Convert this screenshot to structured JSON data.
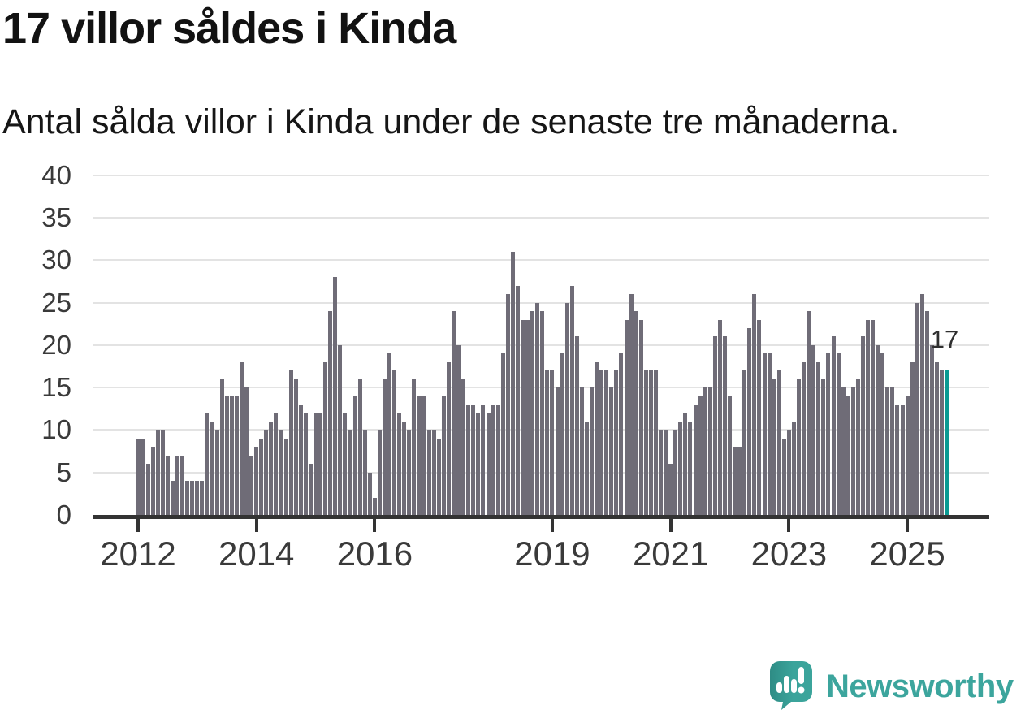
{
  "header": {
    "title": "17 villor såldes i Kinda",
    "subtitle": "Antal sålda villor i Kinda under de senaste tre månaderna."
  },
  "chart_data": {
    "type": "bar",
    "title": "17 villor såldes i Kinda",
    "subtitle": "Antal sålda villor i Kinda under de senaste tre månaderna.",
    "x_unit": "month",
    "x_start": "2012-01",
    "x_end": "2025-09",
    "values": [
      9,
      9,
      6,
      8,
      10,
      10,
      7,
      4,
      7,
      7,
      4,
      4,
      4,
      4,
      12,
      11,
      10,
      16,
      14,
      14,
      14,
      18,
      15,
      7,
      8,
      9,
      10,
      11,
      12,
      10,
      9,
      17,
      16,
      13,
      12,
      6,
      12,
      12,
      18,
      24,
      28,
      20,
      12,
      10,
      14,
      16,
      10,
      5,
      2,
      10,
      16,
      19,
      17,
      12,
      11,
      10,
      16,
      14,
      14,
      10,
      10,
      9,
      14,
      18,
      24,
      20,
      16,
      13,
      13,
      12,
      13,
      12,
      13,
      13,
      19,
      26,
      31,
      27,
      23,
      23,
      24,
      25,
      24,
      17,
      17,
      15,
      19,
      25,
      27,
      21,
      15,
      11,
      15,
      18,
      17,
      17,
      15,
      17,
      19,
      23,
      26,
      24,
      23,
      17,
      17,
      17,
      10,
      10,
      6,
      10,
      11,
      12,
      11,
      13,
      14,
      15,
      15,
      21,
      23,
      21,
      14,
      8,
      8,
      17,
      22,
      26,
      23,
      19,
      19,
      16,
      17,
      9,
      10,
      11,
      16,
      18,
      24,
      20,
      18,
      16,
      19,
      21,
      19,
      15,
      14,
      15,
      16,
      21,
      23,
      23,
      20,
      19,
      15,
      15,
      13,
      13,
      14,
      18,
      25,
      26,
      24,
      20,
      18,
      17,
      17
    ],
    "highlight_index": 164,
    "annotation_label": "17",
    "ylim": [
      0,
      40
    ],
    "y_ticks": [
      0,
      5,
      10,
      15,
      20,
      25,
      30,
      35,
      40
    ],
    "x_tick_indices": [
      0,
      24,
      48,
      84,
      108,
      132,
      156
    ],
    "x_tick_labels": [
      "2012",
      "2014",
      "2016",
      "2019",
      "2021",
      "2023",
      "2025"
    ],
    "grid": "on",
    "legend": "none",
    "colors": {
      "bar": "#6f6c77",
      "highlight": "#0a9a92",
      "axis": "#333333",
      "grid": "#e3e3e3",
      "tick_text": "#3a3a3a"
    }
  },
  "footer": {
    "brand": "Newsworthy",
    "brand_color": "#3ca59d",
    "logo_teal": "#3ba49b",
    "logo_teal_dark": "#2e8c85"
  }
}
